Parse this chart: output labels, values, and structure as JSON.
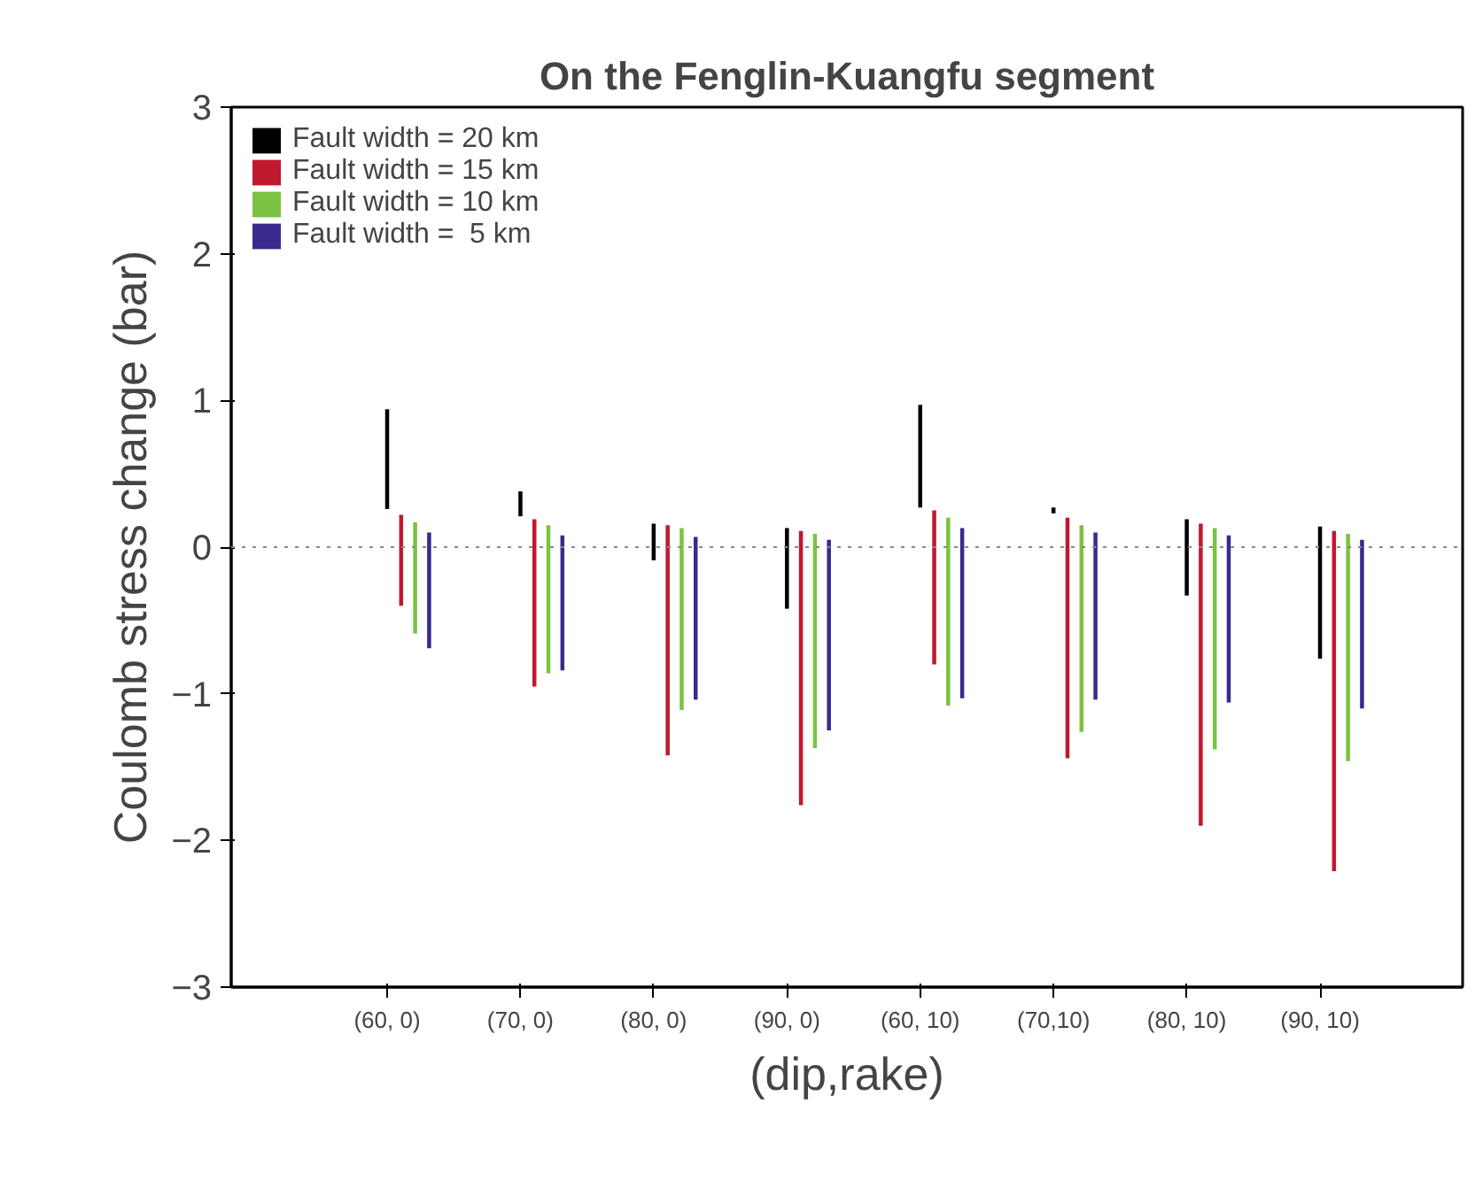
{
  "chart_data": {
    "type": "bar",
    "title": "On the Fenglin-Kuangfu segment",
    "xlabel": "(dip,rake)",
    "ylabel": "Coulomb stress change (bar)",
    "categories": [
      "(60, 0)",
      "(70, 0)",
      "(80, 0)",
      "(90, 0)",
      "(60, 10)",
      "(70,10)",
      "(80, 10)",
      "(90, 10)"
    ],
    "series": [
      {
        "name": "Fault width = 20 km",
        "color": "#000000",
        "base": [
          0.26,
          0.21,
          -0.09,
          -0.42,
          0.27,
          0.23,
          -0.33,
          -0.76
        ],
        "values": [
          0.68,
          0.17,
          0.25,
          0.55,
          0.7,
          0.04,
          0.52,
          0.9
        ]
      },
      {
        "name": "Fault width = 15 km",
        "color": "#c0182e",
        "base": [
          -0.4,
          -0.95,
          -1.42,
          -1.76,
          -0.8,
          -1.44,
          -1.9,
          -2.21
        ],
        "values": [
          0.62,
          1.14,
          1.57,
          1.87,
          1.05,
          1.64,
          2.06,
          2.32
        ]
      },
      {
        "name": "Fault width = 10 km",
        "color": "#7cc242",
        "base": [
          -0.59,
          -0.86,
          -1.11,
          -1.37,
          -1.08,
          -1.26,
          -1.38,
          -1.46
        ],
        "values": [
          0.76,
          1.01,
          1.24,
          1.46,
          1.28,
          1.41,
          1.51,
          1.55
        ]
      },
      {
        "name": "Fault width =  5 km",
        "color": "#3a2a8c",
        "base": [
          -0.69,
          -0.84,
          -1.04,
          -1.25,
          -1.03,
          -1.04,
          -1.06,
          -1.1
        ],
        "values": [
          0.79,
          0.92,
          1.11,
          1.3,
          1.16,
          1.14,
          1.14,
          1.15
        ]
      }
    ],
    "ylim": [
      -3,
      3
    ],
    "yticks": [
      -3,
      -2,
      -1,
      0,
      1,
      2,
      3
    ],
    "ref_lines": [
      {
        "axis": "y",
        "value": 0,
        "color": "#888888",
        "line_style": "dotted"
      }
    ],
    "grid": false,
    "legend": "top left"
  }
}
